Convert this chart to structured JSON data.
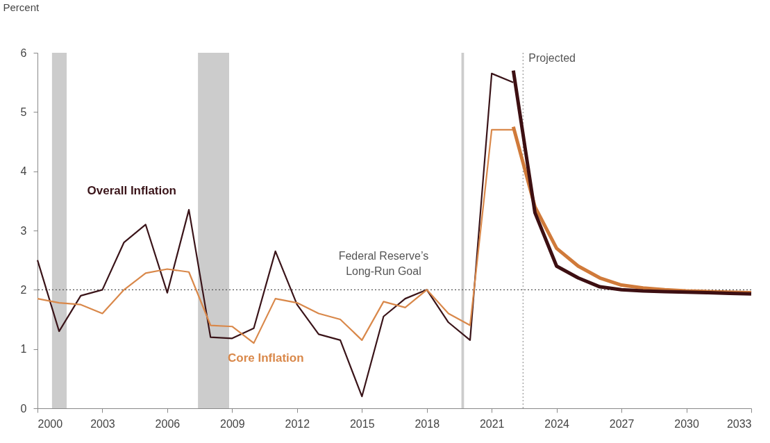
{
  "chart_data": {
    "type": "line",
    "ylabel": "Percent",
    "xlim": [
      2000,
      2033
    ],
    "xticks": [
      2000,
      2003,
      2006,
      2009,
      2012,
      2015,
      2018,
      2021,
      2024,
      2027,
      2030,
      2033
    ],
    "ylim": [
      0,
      6
    ],
    "yticks": [
      0,
      1,
      2,
      3,
      4,
      5,
      6
    ],
    "grid": false,
    "marker": "none",
    "line_style": "solid",
    "x": [
      2000,
      2001,
      2002,
      2003,
      2004,
      2005,
      2006,
      2007,
      2008,
      2009,
      2010,
      2011,
      2012,
      2013,
      2014,
      2015,
      2016,
      2017,
      2018,
      2019,
      2020,
      2021,
      2022
    ],
    "series": [
      {
        "name": "Overall Inflation",
        "color": "#3a1419",
        "values": [
          2.5,
          1.3,
          1.9,
          2.0,
          2.8,
          3.1,
          1.95,
          3.35,
          1.2,
          1.18,
          1.35,
          2.65,
          1.75,
          1.25,
          1.15,
          0.2,
          1.55,
          1.85,
          2.0,
          1.45,
          1.15,
          5.65,
          5.5
        ]
      },
      {
        "name": "Core Inflation",
        "color": "#d9884a",
        "values": [
          1.85,
          1.78,
          1.75,
          1.6,
          2.0,
          2.28,
          2.35,
          2.3,
          1.4,
          1.38,
          1.1,
          1.85,
          1.78,
          1.6,
          1.5,
          1.15,
          1.8,
          1.7,
          2.0,
          1.6,
          1.4,
          4.7,
          4.7
        ]
      },
      {
        "color": "#d07a3a",
        "x": [
          2022,
          2023,
          2024,
          2025,
          2026,
          2027,
          2028,
          2029,
          2030,
          2031,
          2032,
          2033
        ],
        "values": [
          4.75,
          3.4,
          2.7,
          2.4,
          2.2,
          2.08,
          2.03,
          2.0,
          1.98,
          1.97,
          1.96,
          1.95
        ]
      },
      {
        "color": "#3d0f12",
        "x": [
          2022,
          2023,
          2024,
          2025,
          2026,
          2027,
          2028,
          2029,
          2030,
          2031,
          2032,
          2033
        ],
        "values": [
          5.7,
          3.3,
          2.4,
          2.2,
          2.05,
          2.0,
          1.98,
          1.97,
          1.96,
          1.95,
          1.94,
          1.93
        ]
      }
    ],
    "bands": [
      {
        "axis": "x",
        "from": 2000.67,
        "to": 2001.35,
        "color": "#cccccc"
      },
      {
        "axis": "x",
        "from": 2007.42,
        "to": 2008.86,
        "color": "#cccccc"
      },
      {
        "axis": "x",
        "from": 2019.6,
        "to": 2019.72,
        "color": "#cccccc"
      }
    ],
    "ref_lines": [
      {
        "axis": "y",
        "value": 2,
        "label": "Federal Reserve’s\nLong-Run Goal",
        "line_style": "dotted",
        "color": "#555555"
      },
      {
        "axis": "x",
        "value": 2022.45,
        "label": "Projected",
        "line_style": "dotted",
        "color": "#999999"
      }
    ]
  }
}
